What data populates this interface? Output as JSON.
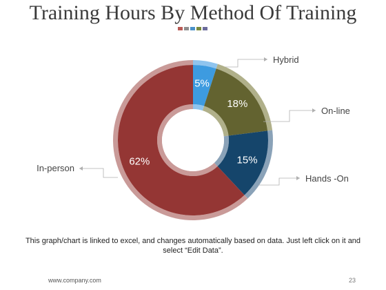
{
  "title": "Training Hours By Method Of Training",
  "deco_colors": [
    "#b95a55",
    "#8e8e8e",
    "#4a90c8",
    "#7a8a3c",
    "#6b6b9b"
  ],
  "note": "This graph/chart is linked to excel, and changes automatically based on data. Just left click on it and select “Edit Data”.",
  "footer": {
    "url": "www.company.com",
    "page": "23"
  },
  "chart_data": {
    "type": "pie",
    "variant": "donut",
    "slices": [
      {
        "label": "Hybrid",
        "value": 5,
        "display": "5%",
        "color": "#3d9be0",
        "ring": "#8fc4ee"
      },
      {
        "label": "On-line",
        "value": 18,
        "display": "18%",
        "color": "#636330",
        "ring": "#b0b08a"
      },
      {
        "label": "Hands -On",
        "value": 15,
        "display": "15%",
        "color": "#15456b",
        "ring": "#8aa2b8"
      },
      {
        "label": "In-person",
        "value": 62,
        "display": "62%",
        "color": "#943634",
        "ring": "#c99a98"
      }
    ]
  }
}
